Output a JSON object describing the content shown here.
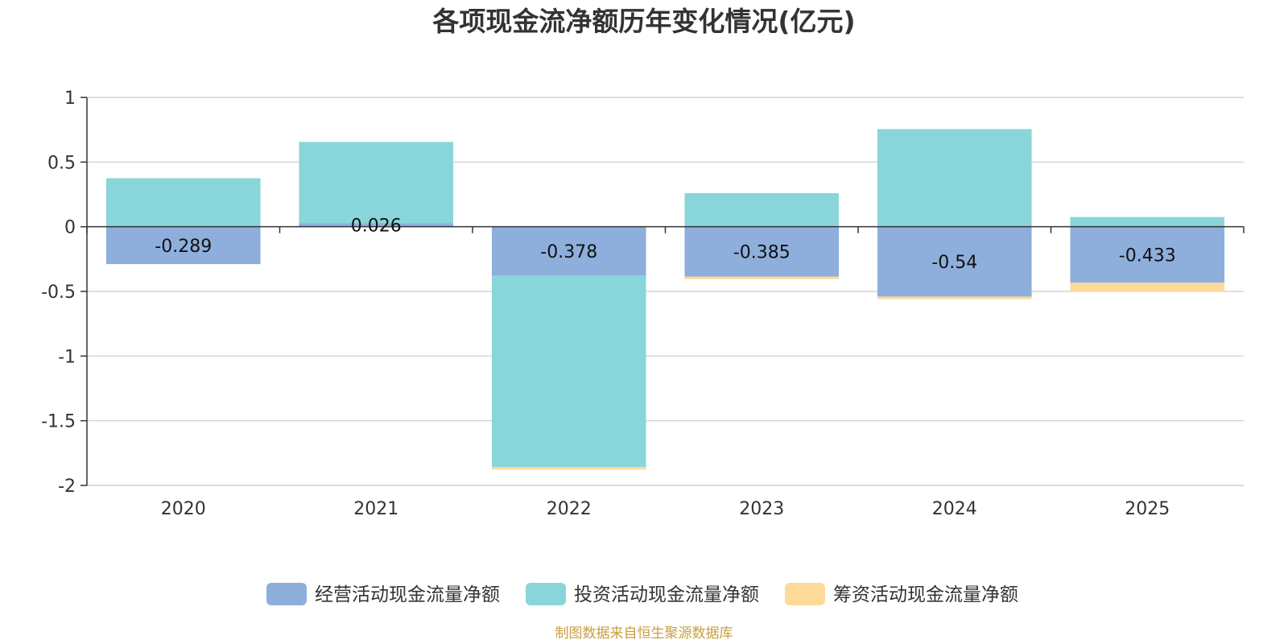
{
  "chart_data": {
    "type": "bar",
    "stacked": true,
    "title": "各项现金流净额历年变化情况(亿元)",
    "xlabel": "",
    "ylabel": "",
    "categories": [
      "2020",
      "2021",
      "2022",
      "2023",
      "2024",
      "2025"
    ],
    "ylim": [
      -2,
      1
    ],
    "yticks": [
      "1",
      "0.5",
      "0",
      "-0.5",
      "-1",
      "-1.5",
      "-2"
    ],
    "ytick_values": [
      1,
      0.5,
      0,
      -0.5,
      -1,
      -1.5,
      -2
    ],
    "grid": true,
    "legend_position": "bottom",
    "series": [
      {
        "name": "经营活动现金流量净额",
        "color": "#8eafdc",
        "values": [
          -0.289,
          0.026,
          -0.378,
          -0.385,
          -0.54,
          -0.433
        ],
        "labels": [
          "-0.289",
          "0.026",
          "-0.378",
          "-0.385",
          "-0.54",
          "-0.433"
        ]
      },
      {
        "name": "投资活动现金流量净额",
        "color": "#88d6da",
        "values": [
          0.375,
          0.63,
          -1.48,
          0.26,
          0.755,
          0.075
        ]
      },
      {
        "name": "筹资活动现金流量净额",
        "color": "#fdd99a",
        "values": [
          0,
          0,
          -0.02,
          -0.02,
          -0.02,
          -0.07
        ]
      }
    ],
    "source": "制图数据来自恒生聚源数据库"
  }
}
